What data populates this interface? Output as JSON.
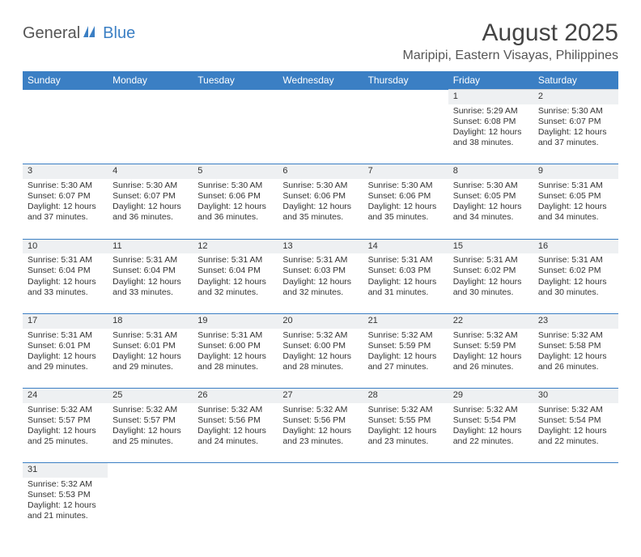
{
  "logo": {
    "part1": "General",
    "part2": "Blue"
  },
  "title": "August 2025",
  "location": "Maripipi, Eastern Visayas, Philippines",
  "colors": {
    "header_bg": "#3b7fc4",
    "header_text": "#ffffff",
    "daynum_bg": "#eef0f2",
    "row_divider": "#3b7fc4",
    "text": "#333333",
    "logo_gray": "#555555",
    "logo_blue": "#3b7fc4"
  },
  "dow": [
    "Sunday",
    "Monday",
    "Tuesday",
    "Wednesday",
    "Thursday",
    "Friday",
    "Saturday"
  ],
  "weeks": [
    [
      null,
      null,
      null,
      null,
      null,
      {
        "n": "1",
        "sr": "Sunrise: 5:29 AM",
        "ss": "Sunset: 6:08 PM",
        "dl": "Daylight: 12 hours and 38 minutes."
      },
      {
        "n": "2",
        "sr": "Sunrise: 5:30 AM",
        "ss": "Sunset: 6:07 PM",
        "dl": "Daylight: 12 hours and 37 minutes."
      }
    ],
    [
      {
        "n": "3",
        "sr": "Sunrise: 5:30 AM",
        "ss": "Sunset: 6:07 PM",
        "dl": "Daylight: 12 hours and 37 minutes."
      },
      {
        "n": "4",
        "sr": "Sunrise: 5:30 AM",
        "ss": "Sunset: 6:07 PM",
        "dl": "Daylight: 12 hours and 36 minutes."
      },
      {
        "n": "5",
        "sr": "Sunrise: 5:30 AM",
        "ss": "Sunset: 6:06 PM",
        "dl": "Daylight: 12 hours and 36 minutes."
      },
      {
        "n": "6",
        "sr": "Sunrise: 5:30 AM",
        "ss": "Sunset: 6:06 PM",
        "dl": "Daylight: 12 hours and 35 minutes."
      },
      {
        "n": "7",
        "sr": "Sunrise: 5:30 AM",
        "ss": "Sunset: 6:06 PM",
        "dl": "Daylight: 12 hours and 35 minutes."
      },
      {
        "n": "8",
        "sr": "Sunrise: 5:30 AM",
        "ss": "Sunset: 6:05 PM",
        "dl": "Daylight: 12 hours and 34 minutes."
      },
      {
        "n": "9",
        "sr": "Sunrise: 5:31 AM",
        "ss": "Sunset: 6:05 PM",
        "dl": "Daylight: 12 hours and 34 minutes."
      }
    ],
    [
      {
        "n": "10",
        "sr": "Sunrise: 5:31 AM",
        "ss": "Sunset: 6:04 PM",
        "dl": "Daylight: 12 hours and 33 minutes."
      },
      {
        "n": "11",
        "sr": "Sunrise: 5:31 AM",
        "ss": "Sunset: 6:04 PM",
        "dl": "Daylight: 12 hours and 33 minutes."
      },
      {
        "n": "12",
        "sr": "Sunrise: 5:31 AM",
        "ss": "Sunset: 6:04 PM",
        "dl": "Daylight: 12 hours and 32 minutes."
      },
      {
        "n": "13",
        "sr": "Sunrise: 5:31 AM",
        "ss": "Sunset: 6:03 PM",
        "dl": "Daylight: 12 hours and 32 minutes."
      },
      {
        "n": "14",
        "sr": "Sunrise: 5:31 AM",
        "ss": "Sunset: 6:03 PM",
        "dl": "Daylight: 12 hours and 31 minutes."
      },
      {
        "n": "15",
        "sr": "Sunrise: 5:31 AM",
        "ss": "Sunset: 6:02 PM",
        "dl": "Daylight: 12 hours and 30 minutes."
      },
      {
        "n": "16",
        "sr": "Sunrise: 5:31 AM",
        "ss": "Sunset: 6:02 PM",
        "dl": "Daylight: 12 hours and 30 minutes."
      }
    ],
    [
      {
        "n": "17",
        "sr": "Sunrise: 5:31 AM",
        "ss": "Sunset: 6:01 PM",
        "dl": "Daylight: 12 hours and 29 minutes."
      },
      {
        "n": "18",
        "sr": "Sunrise: 5:31 AM",
        "ss": "Sunset: 6:01 PM",
        "dl": "Daylight: 12 hours and 29 minutes."
      },
      {
        "n": "19",
        "sr": "Sunrise: 5:31 AM",
        "ss": "Sunset: 6:00 PM",
        "dl": "Daylight: 12 hours and 28 minutes."
      },
      {
        "n": "20",
        "sr": "Sunrise: 5:32 AM",
        "ss": "Sunset: 6:00 PM",
        "dl": "Daylight: 12 hours and 28 minutes."
      },
      {
        "n": "21",
        "sr": "Sunrise: 5:32 AM",
        "ss": "Sunset: 5:59 PM",
        "dl": "Daylight: 12 hours and 27 minutes."
      },
      {
        "n": "22",
        "sr": "Sunrise: 5:32 AM",
        "ss": "Sunset: 5:59 PM",
        "dl": "Daylight: 12 hours and 26 minutes."
      },
      {
        "n": "23",
        "sr": "Sunrise: 5:32 AM",
        "ss": "Sunset: 5:58 PM",
        "dl": "Daylight: 12 hours and 26 minutes."
      }
    ],
    [
      {
        "n": "24",
        "sr": "Sunrise: 5:32 AM",
        "ss": "Sunset: 5:57 PM",
        "dl": "Daylight: 12 hours and 25 minutes."
      },
      {
        "n": "25",
        "sr": "Sunrise: 5:32 AM",
        "ss": "Sunset: 5:57 PM",
        "dl": "Daylight: 12 hours and 25 minutes."
      },
      {
        "n": "26",
        "sr": "Sunrise: 5:32 AM",
        "ss": "Sunset: 5:56 PM",
        "dl": "Daylight: 12 hours and 24 minutes."
      },
      {
        "n": "27",
        "sr": "Sunrise: 5:32 AM",
        "ss": "Sunset: 5:56 PM",
        "dl": "Daylight: 12 hours and 23 minutes."
      },
      {
        "n": "28",
        "sr": "Sunrise: 5:32 AM",
        "ss": "Sunset: 5:55 PM",
        "dl": "Daylight: 12 hours and 23 minutes."
      },
      {
        "n": "29",
        "sr": "Sunrise: 5:32 AM",
        "ss": "Sunset: 5:54 PM",
        "dl": "Daylight: 12 hours and 22 minutes."
      },
      {
        "n": "30",
        "sr": "Sunrise: 5:32 AM",
        "ss": "Sunset: 5:54 PM",
        "dl": "Daylight: 12 hours and 22 minutes."
      }
    ],
    [
      {
        "n": "31",
        "sr": "Sunrise: 5:32 AM",
        "ss": "Sunset: 5:53 PM",
        "dl": "Daylight: 12 hours and 21 minutes."
      },
      null,
      null,
      null,
      null,
      null,
      null
    ]
  ]
}
